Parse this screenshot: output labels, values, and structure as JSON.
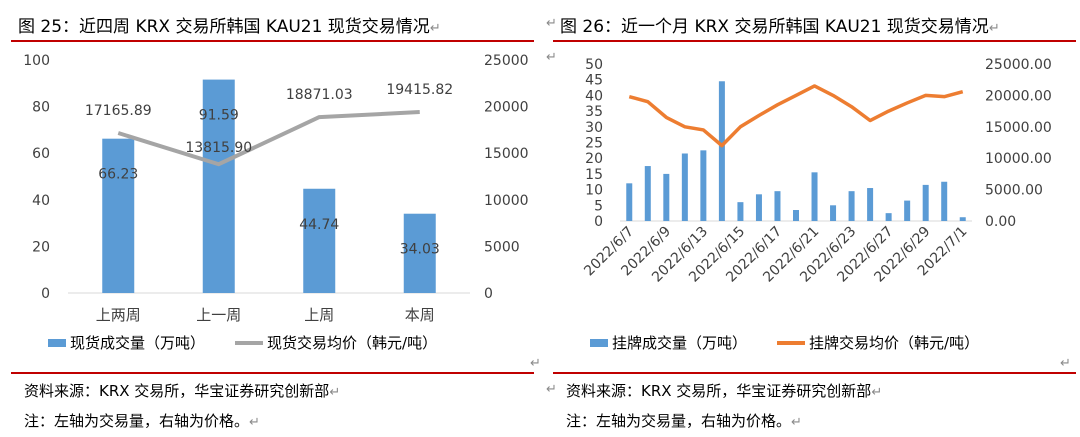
{
  "colors": {
    "bar": "#5B9BD5",
    "grayLine": "#A5A5A5",
    "orangeLine": "#ED7D31",
    "rule": "#C00000",
    "axisText": "#404040"
  },
  "return_mark": "↵",
  "left": {
    "title": "图 25：近四周 KRX 交易所韩国 KAU21 现货交易情况",
    "legend_bar": "现货成交量（万吨）",
    "legend_line": "现货交易均价（韩元/吨）",
    "source": "资料来源：KRX 交易所，华宝证券研究创新部",
    "note": "注：左轴为交易量，右轴为价格。"
  },
  "right": {
    "title": "图 26：近一个月 KRX 交易所韩国 KAU21 现货交易情况",
    "legend_bar": "挂牌成交量（万吨）",
    "legend_line": "挂牌交易均价（韩元/吨）",
    "source": "资料来源：KRX 交易所，华宝证券研究创新部",
    "note": "注：左轴为交易量，右轴为价格。"
  },
  "chart_data": [
    {
      "type": "bar",
      "categories": [
        "上两周",
        "上一周",
        "上周",
        "本周"
      ],
      "series": [
        {
          "name": "现货成交量（万吨）",
          "type": "bar",
          "axis": "left",
          "values": [
            66.23,
            91.59,
            44.74,
            34.03
          ]
        },
        {
          "name": "现货交易均价（韩元/吨）",
          "type": "line",
          "axis": "right",
          "values": [
            17165.89,
            13815.9,
            18871.03,
            19415.82
          ]
        }
      ],
      "ylim": [
        0,
        100
      ],
      "yticks": [
        "0",
        "20",
        "40",
        "60",
        "80",
        "100"
      ],
      "y2lim": [
        0,
        25000
      ],
      "y2ticks": [
        "0",
        "5000",
        "10000",
        "15000",
        "20000",
        "25000"
      ],
      "legend": "bottom",
      "grid": false
    },
    {
      "type": "bar",
      "x_ticklabels": [
        "2022/6/7",
        "2022/6/9",
        "2022/6/13",
        "2022/6/15",
        "2022/6/17",
        "2022/6/21",
        "2022/6/23",
        "2022/6/27",
        "2022/6/29",
        "2022/7/1"
      ],
      "series": [
        {
          "name": "挂牌成交量（万吨）",
          "type": "bar",
          "axis": "left",
          "values": [
            12,
            17.5,
            15,
            21.5,
            22.5,
            44.5,
            6,
            8.5,
            9.5,
            3.5,
            15.5,
            5,
            9.5,
            10.5,
            2.5,
            6.5,
            11.5,
            12.5,
            1.2
          ]
        },
        {
          "name": "挂牌交易均价（韩元/吨）",
          "type": "line",
          "axis": "right",
          "values": [
            19800,
            19000,
            16500,
            15000,
            14500,
            12000,
            15000,
            16800,
            18500,
            20000,
            21500,
            20000,
            18200,
            16000,
            17500,
            18800,
            20000,
            19800,
            20600
          ]
        }
      ],
      "ylim": [
        0,
        50
      ],
      "yticks": [
        "0",
        "5",
        "10",
        "15",
        "20",
        "25",
        "30",
        "35",
        "40",
        "45",
        "50"
      ],
      "y2lim": [
        0,
        25000
      ],
      "y2ticks": [
        "0.00",
        "5000.00",
        "10000.00",
        "15000.00",
        "20000.00",
        "25000.00"
      ],
      "legend": "bottom",
      "grid": false
    }
  ]
}
